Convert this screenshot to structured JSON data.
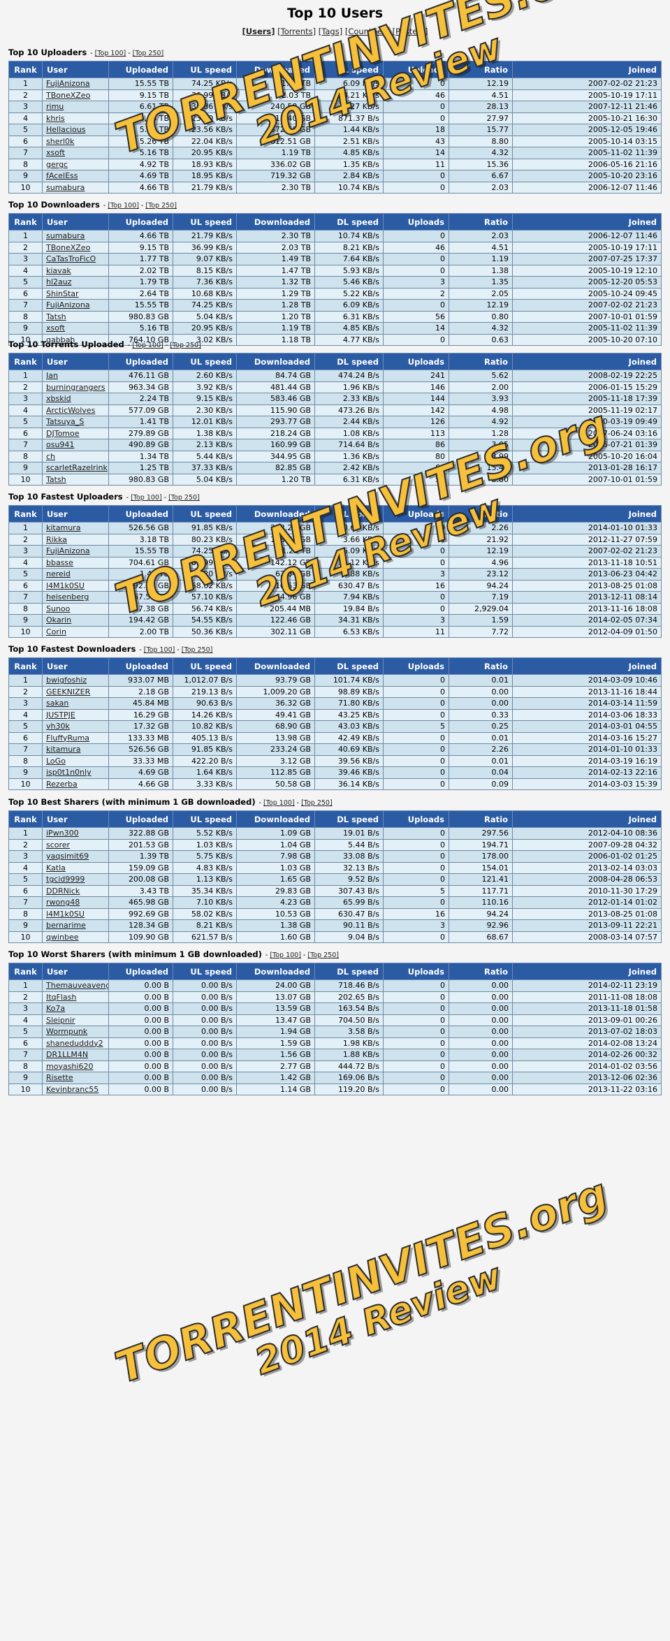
{
  "page": {
    "title": "Top 10 Users"
  },
  "nav": [
    {
      "label": "[Users]",
      "active": true
    },
    {
      "label": "[Torrents]",
      "active": false
    },
    {
      "label": "[Tags]",
      "active": false
    },
    {
      "label": "[Countries]",
      "active": false
    },
    {
      "label": "[Posters]",
      "active": false
    }
  ],
  "links": {
    "top100": "[Top 100]",
    "top250": "[Top 250]",
    "sep": "-"
  },
  "columns": [
    "Rank",
    "User",
    "Uploaded",
    "UL speed",
    "Downloaded",
    "DL speed",
    "Uploads",
    "Ratio",
    "Joined"
  ],
  "watermark": {
    "line1": "TORRENTINVITES.org",
    "line2": "2014 Review",
    "color": "#f6c03a"
  },
  "sections": [
    {
      "title": "Top 10 Uploaders",
      "rows": [
        [
          "1",
          "FujiAnizona",
          "15.55 TB",
          "74.25 KB/s",
          "1.28 TB",
          "6.09 KB/s",
          "0",
          "12.19",
          "2007-02-02 21:23"
        ],
        [
          "2",
          "TBoneXZeo",
          "9.15 TB",
          "36.99 KB/s",
          "2.03 TB",
          "8.21 KB/s",
          "46",
          "4.51",
          "2005-10-19 17:11"
        ],
        [
          "3",
          "rimu",
          "6.61 TB",
          "35.86 KB/s",
          "240.58 GB",
          "1.27 KB/s",
          "0",
          "28.13",
          "2007-12-11 21:46"
        ],
        [
          "4",
          "khris",
          "5.88 TB",
          "23.80 KB/s",
          "215.40 GB",
          "871.37 B/s",
          "0",
          "27.97",
          "2005-10-21 16:30"
        ],
        [
          "5",
          "Hellacious",
          "5.74 TB",
          "23.56 KB/s",
          "372.58 GB",
          "1.44 KB/s",
          "18",
          "15.77",
          "2005-12-05 19:46"
        ],
        [
          "6",
          "sherl0k",
          "5.26 TB",
          "22.04 KB/s",
          "612.51 GB",
          "2.51 KB/s",
          "43",
          "8.80",
          "2005-10-14 03:15"
        ],
        [
          "7",
          "xsoft",
          "5.16 TB",
          "20.95 KB/s",
          "1.19 TB",
          "4.85 KB/s",
          "14",
          "4.32",
          "2005-11-02 11:39"
        ],
        [
          "8",
          "gergc",
          "4.92 TB",
          "18.93 KB/s",
          "336.02 GB",
          "1.35 KB/s",
          "11",
          "15.36",
          "2006-05-16 21:16"
        ],
        [
          "9",
          "fAcelEss",
          "4.69 TB",
          "18.95 KB/s",
          "719.32 GB",
          "2.84 KB/s",
          "0",
          "6.67",
          "2005-10-20 23:16"
        ],
        [
          "10",
          "sumabura",
          "4.66 TB",
          "21.79 KB/s",
          "2.30 TB",
          "10.74 KB/s",
          "0",
          "2.03",
          "2006-12-07 11:46"
        ]
      ]
    },
    {
      "title": "Top 10 Downloaders",
      "rows": [
        [
          "1",
          "sumabura",
          "4.66 TB",
          "21.79 KB/s",
          "2.30 TB",
          "10.74 KB/s",
          "0",
          "2.03",
          "2006-12-07 11:46"
        ],
        [
          "2",
          "TBoneXZeo",
          "9.15 TB",
          "36.99 KB/s",
          "2.03 TB",
          "8.21 KB/s",
          "46",
          "4.51",
          "2005-10-19 17:11"
        ],
        [
          "3",
          "CaTasTroFicO",
          "1.77 TB",
          "9.07 KB/s",
          "1.49 TB",
          "7.64 KB/s",
          "0",
          "1.19",
          "2007-07-25 17:37"
        ],
        [
          "4",
          "kiavak",
          "2.02 TB",
          "8.15 KB/s",
          "1.47 TB",
          "5.93 KB/s",
          "0",
          "1.38",
          "2005-10-19 12:10"
        ],
        [
          "5",
          "hl2auz",
          "1.79 TB",
          "7.36 KB/s",
          "1.32 TB",
          "5.46 KB/s",
          "3",
          "1.35",
          "2005-12-20 05:53"
        ],
        [
          "6",
          "ShinStar",
          "2.64 TB",
          "10.68 KB/s",
          "1.29 TB",
          "5.22 KB/s",
          "2",
          "2.05",
          "2005-10-24 09:45"
        ],
        [
          "7",
          "FujiAnizona",
          "15.55 TB",
          "74.25 KB/s",
          "1.28 TB",
          "6.09 KB/s",
          "0",
          "12.19",
          "2007-02-02 21:23"
        ],
        [
          "8",
          "Tatsh",
          "980.83 GB",
          "5.04 KB/s",
          "1.20 TB",
          "6.31 KB/s",
          "56",
          "0.80",
          "2007-10-01 01:59"
        ],
        [
          "9",
          "xsoft",
          "5.16 TB",
          "20.95 KB/s",
          "1.19 TB",
          "4.85 KB/s",
          "14",
          "4.32",
          "2005-11-02 11:39"
        ],
        [
          "10",
          "gabbah",
          "764.10 GB",
          "3.02 KB/s",
          "1.18 TB",
          "4.77 KB/s",
          "0",
          "0.63",
          "2005-10-20 07:10"
        ]
      ]
    },
    {
      "title": "Top 10 Torrents Uploaded",
      "rows": [
        [
          "1",
          "Ian",
          "476.11 GB",
          "2.60 KB/s",
          "84.74 GB",
          "474.24 B/s",
          "241",
          "5.62",
          "2008-02-19 22:25"
        ],
        [
          "2",
          "burningrangers",
          "963.34 GB",
          "3.92 KB/s",
          "481.44 GB",
          "1.96 KB/s",
          "146",
          "2.00",
          "2006-01-15 15:29"
        ],
        [
          "3",
          "xbskid",
          "2.24 TB",
          "9.15 KB/s",
          "583.46 GB",
          "2.33 KB/s",
          "144",
          "3.93",
          "2005-11-18 17:39"
        ],
        [
          "4",
          "ArcticWolves",
          "577.09 GB",
          "2.30 KB/s",
          "115.90 GB",
          "473.26 B/s",
          "142",
          "4.98",
          "2005-11-19 02:17"
        ],
        [
          "5",
          "Tatsuya_S",
          "1.41 TB",
          "12.01 KB/s",
          "293.77 GB",
          "2.44 KB/s",
          "126",
          "4.92",
          "2010-03-19 09:49"
        ],
        [
          "6",
          "DJTomoe",
          "279.89 GB",
          "1.38 KB/s",
          "218.24 GB",
          "1.08 KB/s",
          "113",
          "1.28",
          "2007-06-24 03:16"
        ],
        [
          "7",
          "osu941",
          "490.89 GB",
          "2.13 KB/s",
          "160.99 GB",
          "714.64 B/s",
          "86",
          "3.05",
          "2006-07-21 01:39"
        ],
        [
          "8",
          "ch",
          "1.34 TB",
          "5.44 KB/s",
          "344.95 GB",
          "1.36 KB/s",
          "80",
          "3.99",
          "2005-10-20 16:04"
        ],
        [
          "9",
          "scarletRazelrink",
          "1.25 TB",
          "37.33 KB/s",
          "82.85 GB",
          "2.42 KB/s",
          "66",
          "15.46",
          "2013-01-28 16:17"
        ],
        [
          "10",
          "Tatsh",
          "980.83 GB",
          "5.04 KB/s",
          "1.20 TB",
          "6.31 KB/s",
          "56",
          "0.80",
          "2007-10-01 01:59"
        ]
      ]
    },
    {
      "title": "Top 10 Fastest Uploaders",
      "rows": [
        [
          "1",
          "kitamura",
          "526.56 GB",
          "91.85 KB/s",
          "233.24 GB",
          "40.69 KB/s",
          "0",
          "2.26",
          "2014-01-10 01:33"
        ],
        [
          "2",
          "Rikka",
          "3.18 TB",
          "80.23 KB/s",
          "148.75 GB",
          "3.66 KB/s",
          "0",
          "21.92",
          "2012-11-27 07:59"
        ],
        [
          "3",
          "FujiAnizona",
          "15.55 TB",
          "74.25 KB/s",
          "1.28 TB",
          "6.09 KB/s",
          "0",
          "12.19",
          "2007-02-02 21:23"
        ],
        [
          "4",
          "bbasse",
          "704.61 GB",
          "69.99 KB/s",
          "142.12 GB",
          "14.12 KB/s",
          "0",
          "4.96",
          "2013-11-18 10:51"
        ],
        [
          "5",
          "nereid",
          "1.42 TB",
          "65.20 KB/s",
          "62.84 GB",
          "2.88 KB/s",
          "3",
          "23.12",
          "2013-06-23 04:42"
        ],
        [
          "6",
          "l4M1k0SU",
          "992.69 GB",
          "58.02 KB/s",
          "10.53 GB",
          "630.47 B/s",
          "16",
          "94.24",
          "2013-08-25 01:08"
        ],
        [
          "7",
          "heisenberg",
          "467.50 GB",
          "57.10 KB/s",
          "64.96 GB",
          "7.94 KB/s",
          "0",
          "7.19",
          "2013-12-11 08:14"
        ],
        [
          "8",
          "Sunoo",
          "587.38 GB",
          "56.74 KB/s",
          "205.44 MB",
          "19.84 B/s",
          "0",
          "2,929.04",
          "2013-11-16 18:08"
        ],
        [
          "9",
          "Okarin",
          "194.42 GB",
          "54.55 KB/s",
          "122.46 GB",
          "34.31 KB/s",
          "3",
          "1.59",
          "2014-02-05 07:34"
        ],
        [
          "10",
          "Corin",
          "2.00 TB",
          "50.36 KB/s",
          "302.11 GB",
          "6.53 KB/s",
          "11",
          "7.72",
          "2012-04-09 01:50"
        ]
      ]
    },
    {
      "title": "Top 10 Fastest Downloaders",
      "rows": [
        [
          "1",
          "bwigfoshiz",
          "933.07 MB",
          "1,012.07 B/s",
          "93.79 GB",
          "101.74 KB/s",
          "0",
          "0.01",
          "2014-03-09 10:46"
        ],
        [
          "2",
          "GEEKNIZER",
          "2.18 GB",
          "219.13 B/s",
          "1,009.20 GB",
          "98.89 KB/s",
          "0",
          "0.00",
          "2013-11-16 18:44"
        ],
        [
          "3",
          "sakan",
          "45.84 MB",
          "90.63 B/s",
          "36.32 GB",
          "71.80 KB/s",
          "0",
          "0.00",
          "2014-03-14 11:59"
        ],
        [
          "4",
          "JUSTPJE",
          "16.29 GB",
          "14.26 KB/s",
          "49.41 GB",
          "43.25 KB/s",
          "0",
          "0.33",
          "2014-03-06 18:33"
        ],
        [
          "5",
          "vh30k",
          "17.32 GB",
          "10.82 KB/s",
          "68.90 GB",
          "43.03 KB/s",
          "5",
          "0.25",
          "2014-03-01 04:55"
        ],
        [
          "6",
          "FluffyRuma",
          "133.33 MB",
          "405.13 B/s",
          "13.98 GB",
          "42.49 KB/s",
          "0",
          "0.01",
          "2014-03-16 15:27"
        ],
        [
          "7",
          "kitamura",
          "526.56 GB",
          "91.85 KB/s",
          "233.24 GB",
          "40.69 KB/s",
          "0",
          "2.26",
          "2014-01-10 01:33"
        ],
        [
          "8",
          "LoGo",
          "33.33 MB",
          "422.20 B/s",
          "3.12 GB",
          "39.56 KB/s",
          "0",
          "0.01",
          "2014-03-19 16:19"
        ],
        [
          "9",
          "isp0t1n0nly",
          "4.69 GB",
          "1.64 KB/s",
          "112.85 GB",
          "39.46 KB/s",
          "0",
          "0.04",
          "2014-02-13 22:16"
        ],
        [
          "10",
          "Rezerba",
          "4.66 GB",
          "3.33 KB/s",
          "50.58 GB",
          "36.14 KB/s",
          "0",
          "0.09",
          "2014-03-03 15:39"
        ]
      ]
    },
    {
      "title": "Top 10 Best Sharers (with minimum 1 GB downloaded)",
      "rows": [
        [
          "1",
          "iPwn300",
          "322.88 GB",
          "5.52 KB/s",
          "1.09 GB",
          "19.01 B/s",
          "0",
          "297.56",
          "2012-04-10 08:36"
        ],
        [
          "2",
          "scorer",
          "201.53 GB",
          "1.03 KB/s",
          "1.04 GB",
          "5.44 B/s",
          "0",
          "194.71",
          "2007-09-28 04:32"
        ],
        [
          "3",
          "yaqsimit69",
          "1.39 TB",
          "5.75 KB/s",
          "7.98 GB",
          "33.08 B/s",
          "0",
          "178.00",
          "2006-01-02 01:25"
        ],
        [
          "4",
          "Katla",
          "159.09 GB",
          "4.83 KB/s",
          "1.03 GB",
          "32.13 B/s",
          "0",
          "154.01",
          "2013-02-14 03:03"
        ],
        [
          "5",
          "tgcid9999",
          "200.08 GB",
          "1.13 KB/s",
          "1.65 GB",
          "9.52 B/s",
          "0",
          "121.41",
          "2008-04-28 06:53"
        ],
        [
          "6",
          "DDRNick",
          "3.43 TB",
          "35.34 KB/s",
          "29.83 GB",
          "307.43 B/s",
          "5",
          "117.71",
          "2010-11-30 17:29"
        ],
        [
          "7",
          "rwong48",
          "465.98 GB",
          "7.10 KB/s",
          "4.23 GB",
          "65.99 B/s",
          "0",
          "110.16",
          "2012-01-14 01:02"
        ],
        [
          "8",
          "l4M1k0SU",
          "992.69 GB",
          "58.02 KB/s",
          "10.53 GB",
          "630.47 B/s",
          "16",
          "94.24",
          "2013-08-25 01:08"
        ],
        [
          "9",
          "bernarime",
          "128.34 GB",
          "8.21 KB/s",
          "1.38 GB",
          "90.11 B/s",
          "3",
          "92.96",
          "2013-09-11 22:21"
        ],
        [
          "10",
          "qwinbee",
          "109.90 GB",
          "621.57 B/s",
          "1.60 GB",
          "9.04 B/s",
          "0",
          "68.67",
          "2008-03-14 07:57"
        ]
      ]
    },
    {
      "title": "Top 10 Worst Sharers (with minimum 1 GB downloaded)",
      "rows": [
        [
          "1",
          "Themauveavenger",
          "0.00 B",
          "0.00 B/s",
          "24.00 GB",
          "718.46 B/s",
          "0",
          "0.00",
          "2014-02-11 23:19"
        ],
        [
          "2",
          "ItqFlash",
          "0.00 B",
          "0.00 B/s",
          "13.07 GB",
          "202.65 B/s",
          "0",
          "0.00",
          "2011-11-08 18:08"
        ],
        [
          "3",
          "Ko7a",
          "0.00 B",
          "0.00 B/s",
          "13.59 GB",
          "163.54 B/s",
          "0",
          "0.00",
          "2013-11-18 01:58"
        ],
        [
          "4",
          "Sleipnir",
          "0.00 B",
          "0.00 B/s",
          "13.47 GB",
          "704.50 B/s",
          "0",
          "0.00",
          "2013-09-01 00:26"
        ],
        [
          "5",
          "Wormpunk",
          "0.00 B",
          "0.00 B/s",
          "1.94 GB",
          "3.58 B/s",
          "0",
          "0.00",
          "2013-07-02 18:03"
        ],
        [
          "6",
          "shanedudddy2",
          "0.00 B",
          "0.00 B/s",
          "1.59 GB",
          "1.98 KB/s",
          "0",
          "0.00",
          "2014-02-08 13:24"
        ],
        [
          "7",
          "DR1LLM4N",
          "0.00 B",
          "0.00 B/s",
          "1.56 GB",
          "1.88 KB/s",
          "0",
          "0.00",
          "2014-02-26 00:32"
        ],
        [
          "8",
          "moyashi620",
          "0.00 B",
          "0.00 B/s",
          "2.77 GB",
          "444.72 B/s",
          "0",
          "0.00",
          "2014-01-02 03:56"
        ],
        [
          "9",
          "Risette",
          "0.00 B",
          "0.00 B/s",
          "1.42 GB",
          "169.06 B/s",
          "0",
          "0.00",
          "2013-12-06 02:36"
        ],
        [
          "10",
          "Kevinbranc55",
          "0.00 B",
          "0.00 B/s",
          "1.14 GB",
          "119.20 B/s",
          "0",
          "0.00",
          "2013-11-22 03:16"
        ]
      ]
    }
  ]
}
